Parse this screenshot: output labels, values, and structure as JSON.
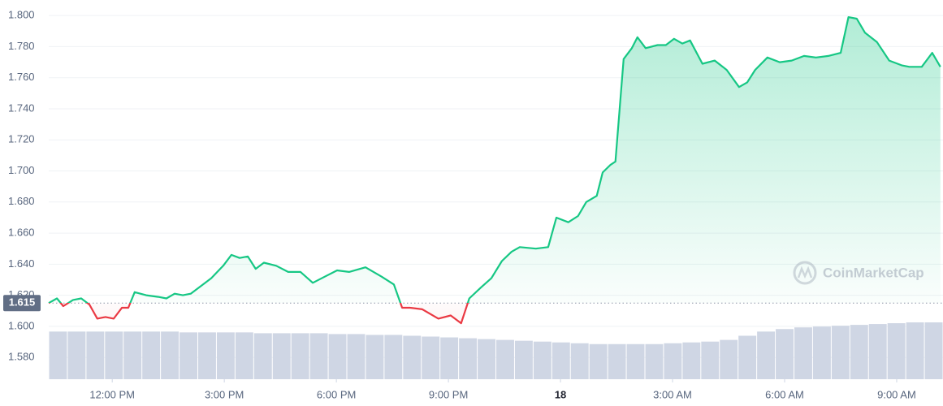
{
  "chart_data": {
    "type": "line",
    "watermark": "CoinMarketCap",
    "x": [
      10.3,
      10.52,
      10.69,
      10.95,
      11.17,
      11.39,
      11.6,
      11.82,
      12.04,
      12.26,
      12.43,
      12.6,
      12.91,
      13.23,
      13.45,
      13.67,
      13.89,
      14.1,
      14.32,
      14.65,
      14.97,
      15.19,
      15.41,
      15.63,
      15.84,
      16.06,
      16.39,
      16.71,
      17.04,
      17.37,
      17.69,
      18.02,
      18.34,
      18.78,
      19.21,
      19.54,
      19.76,
      19.97,
      20.3,
      20.73,
      21.06,
      21.34,
      21.56,
      21.87,
      22.15,
      22.43,
      22.69,
      22.91,
      23.34,
      23.67,
      23.89,
      24.21,
      24.47,
      24.69,
      24.97,
      25.13,
      25.34,
      25.47,
      25.69,
      25.91,
      26.06,
      26.28,
      26.6,
      26.82,
      27.04,
      27.26,
      27.47,
      27.8,
      28.13,
      28.45,
      28.78,
      29.0,
      29.21,
      29.54,
      29.87,
      30.19,
      30.52,
      30.84,
      31.17,
      31.5,
      31.71,
      31.93,
      32.15,
      32.47,
      32.8,
      33.13,
      33.34,
      33.67,
      33.95,
      34.17
    ],
    "series": [
      {
        "color": "#16c784",
        "below_color": "#ea3943",
        "values": [
          1.615,
          1.618,
          1.613,
          1.617,
          1.618,
          1.614,
          1.605,
          1.606,
          1.605,
          1.612,
          1.612,
          1.622,
          1.62,
          1.619,
          1.618,
          1.621,
          1.62,
          1.621,
          1.625,
          1.631,
          1.639,
          1.646,
          1.644,
          1.645,
          1.637,
          1.641,
          1.639,
          1.635,
          1.635,
          1.628,
          1.632,
          1.636,
          1.635,
          1.638,
          1.632,
          1.627,
          1.612,
          1.612,
          1.611,
          1.605,
          1.607,
          1.602,
          1.618,
          1.625,
          1.631,
          1.642,
          1.648,
          1.651,
          1.65,
          1.651,
          1.67,
          1.667,
          1.671,
          1.68,
          1.684,
          1.699,
          1.704,
          1.706,
          1.772,
          1.779,
          1.786,
          1.779,
          1.781,
          1.781,
          1.785,
          1.782,
          1.784,
          1.769,
          1.771,
          1.765,
          1.754,
          1.757,
          1.765,
          1.773,
          1.77,
          1.771,
          1.774,
          1.773,
          1.774,
          1.776,
          1.799,
          1.798,
          1.789,
          1.783,
          1.771,
          1.768,
          1.767,
          1.767,
          1.776,
          1.767
        ]
      }
    ],
    "baseline": {
      "value": 1.615,
      "label": "1.615"
    },
    "volume": {
      "color": "#cfd6e4",
      "values": [
        57,
        57,
        57,
        57,
        57,
        57,
        57,
        56,
        56,
        56,
        56,
        55,
        55,
        55,
        55,
        54,
        54,
        53,
        53,
        52,
        51,
        50,
        49,
        48,
        47,
        46,
        45,
        44,
        43,
        42,
        42,
        42,
        42,
        43,
        44,
        45,
        47,
        52,
        57,
        60,
        62,
        63,
        64,
        65,
        66,
        67,
        68,
        68
      ]
    },
    "xlim": [
      10.3,
      34.24
    ],
    "xticks": [
      {
        "value": 12,
        "label": "12:00 PM"
      },
      {
        "value": 15,
        "label": "3:00 PM"
      },
      {
        "value": 18,
        "label": "6:00 PM"
      },
      {
        "value": 21,
        "label": "9:00 PM"
      },
      {
        "value": 24,
        "label": "18"
      },
      {
        "value": 27,
        "label": "3:00 AM"
      },
      {
        "value": 30,
        "label": "6:00 AM"
      },
      {
        "value": 33,
        "label": "9:00 AM"
      }
    ],
    "ylim": [
      1.566,
      1.81
    ],
    "yticks": [
      {
        "value": 1.58,
        "label": "1.580"
      },
      {
        "value": 1.6,
        "label": "1.600"
      },
      {
        "value": 1.62,
        "label": "1.620"
      },
      {
        "value": 1.64,
        "label": "1.640"
      },
      {
        "value": 1.66,
        "label": "1.660"
      },
      {
        "value": 1.68,
        "label": "1.680"
      },
      {
        "value": 1.7,
        "label": "1.700"
      },
      {
        "value": 1.72,
        "label": "1.720"
      },
      {
        "value": 1.74,
        "label": "1.740"
      },
      {
        "value": 1.76,
        "label": "1.760"
      },
      {
        "value": 1.78,
        "label": "1.780"
      },
      {
        "value": 1.8,
        "label": "1.800"
      }
    ],
    "grid": true
  }
}
